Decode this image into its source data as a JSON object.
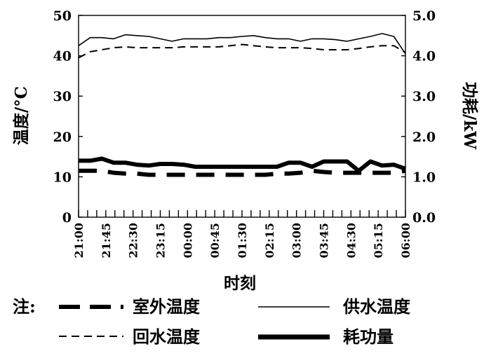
{
  "chart_data": {
    "type": "line",
    "xlabel": "时刻",
    "ylabel_left": "温度/°C",
    "ylabel_right": "功耗/kW",
    "y_left_range": [
      0,
      50
    ],
    "y_left_ticks": [
      0,
      10,
      20,
      30,
      40,
      50
    ],
    "y_right_range": [
      0.0,
      5.0
    ],
    "y_right_ticks": [
      "0.0",
      "1.0",
      "2.0",
      "3.0",
      "4.0",
      "5.0"
    ],
    "x_tick_labels": [
      "21:00",
      "21:45",
      "22:30",
      "23:15",
      "00:00",
      "00:45",
      "01:30",
      "02:15",
      "03:00",
      "03:45",
      "04:30",
      "05:15",
      "06:00"
    ],
    "x_tick_count": 37,
    "grid": false,
    "legend": {
      "prefix": "注:",
      "position": "bottom",
      "entries": [
        "室外温度",
        "供水温度",
        "回水温度",
        "耗功量"
      ]
    },
    "series": [
      {
        "name": "供水温度",
        "axis": "left",
        "style": "solid",
        "values": [
          42.5,
          44.5,
          44.5,
          44.2,
          45.2,
          45.0,
          44.8,
          44.2,
          43.6,
          44.2,
          44.2,
          44.2,
          44.5,
          44.5,
          44.8,
          45.0,
          44.5,
          44.2,
          44.2,
          43.6,
          44.2,
          44.2,
          44.0,
          43.6,
          44.2,
          44.8,
          45.5,
          44.8,
          40.5
        ]
      },
      {
        "name": "回水温度",
        "axis": "left",
        "style": "dashed",
        "values": [
          39.5,
          41.0,
          41.5,
          42.0,
          42.2,
          42.0,
          42.0,
          42.0,
          42.0,
          42.2,
          42.2,
          42.2,
          42.2,
          42.5,
          42.8,
          42.5,
          42.2,
          42.0,
          42.0,
          42.0,
          41.8,
          41.5,
          41.5,
          41.5,
          41.8,
          42.2,
          42.5,
          42.5,
          40.8
        ]
      },
      {
        "name": "耗功量",
        "axis": "right",
        "style": "bold",
        "values": [
          1.4,
          1.4,
          1.45,
          1.35,
          1.35,
          1.3,
          1.28,
          1.32,
          1.32,
          1.3,
          1.25,
          1.25,
          1.25,
          1.25,
          1.25,
          1.25,
          1.25,
          1.25,
          1.35,
          1.35,
          1.25,
          1.38,
          1.38,
          1.38,
          1.15,
          1.38,
          1.28,
          1.3,
          1.2
        ]
      },
      {
        "name": "室外温度",
        "axis": "left",
        "style": "long-dashed",
        "values": [
          11.5,
          11.5,
          11.5,
          11.0,
          10.8,
          10.8,
          10.5,
          10.5,
          10.5,
          10.5,
          10.5,
          10.5,
          10.5,
          10.5,
          10.5,
          10.5,
          10.5,
          10.8,
          10.8,
          11.0,
          11.5,
          11.2,
          11.0,
          11.0,
          11.0,
          11.0,
          11.0,
          11.0,
          11.5
        ]
      }
    ]
  }
}
